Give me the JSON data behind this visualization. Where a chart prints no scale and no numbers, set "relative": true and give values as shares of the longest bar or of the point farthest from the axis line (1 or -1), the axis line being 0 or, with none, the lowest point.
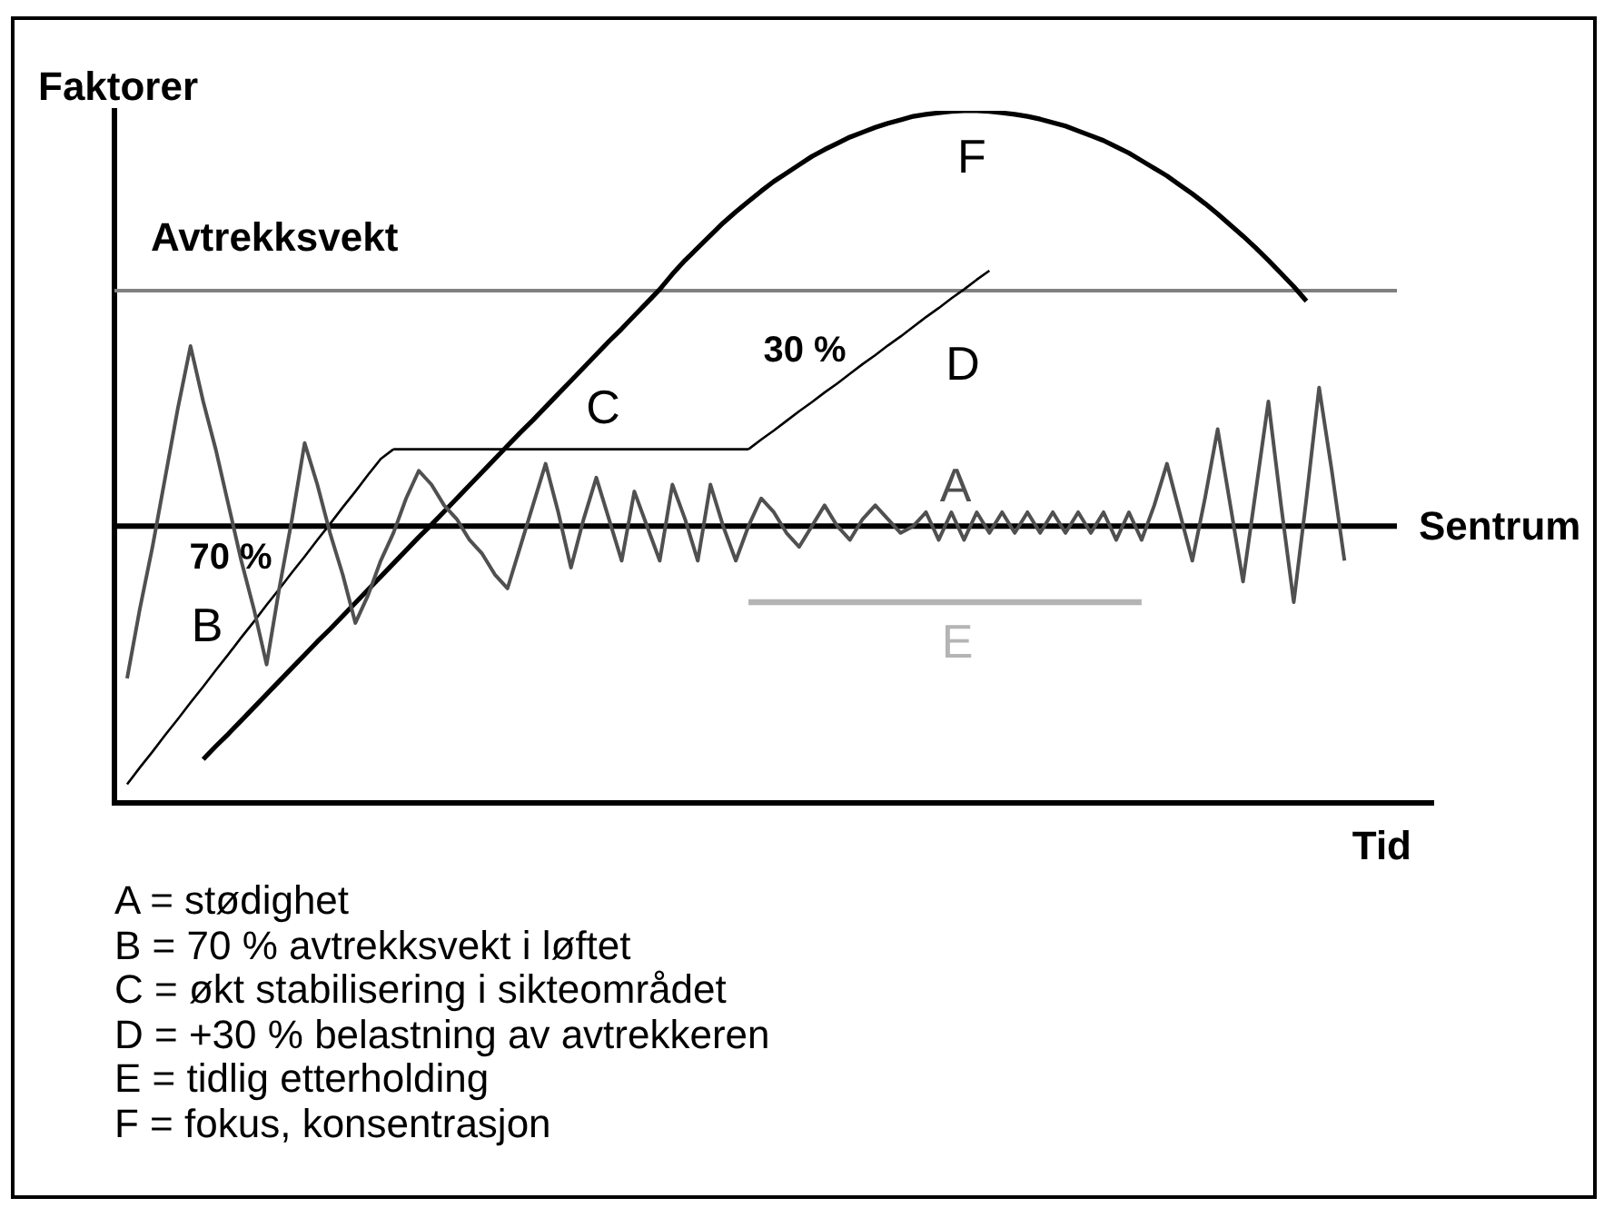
{
  "chart_data": {
    "type": "line",
    "relative": true,
    "marker": "none",
    "ylabel": "Faktorer",
    "xlabel": "Tid",
    "categories": [
      null,
      null,
      null,
      null,
      null,
      null,
      null,
      null,
      null,
      null,
      null,
      null,
      null,
      null,
      null,
      null,
      null,
      null,
      null,
      null,
      null,
      null,
      null,
      null,
      null,
      null,
      null,
      null,
      null,
      null,
      null,
      null,
      null,
      null,
      null,
      null,
      null,
      null,
      null,
      null,
      null,
      null,
      null,
      null,
      null,
      null,
      null,
      null,
      null,
      null,
      null,
      null,
      null,
      null,
      null,
      null,
      null,
      null,
      null,
      null,
      null,
      null,
      null,
      null,
      null,
      null,
      null,
      null,
      null,
      null,
      null,
      null,
      null,
      null,
      null,
      null,
      null,
      null,
      null,
      null,
      null,
      null,
      null,
      null,
      null,
      null,
      null,
      null,
      null,
      null,
      null,
      null,
      null,
      null,
      null,
      null,
      null,
      null,
      null,
      null,
      null,
      null,
      null,
      null,
      null
    ],
    "series": [
      {
        "name": "A",
        "color": "#505050",
        "values": [
          null,
          0.18,
          0.28,
          0.37,
          0.47,
          0.57,
          0.66,
          0.58,
          0.51,
          0.43,
          0.35,
          0.28,
          0.2,
          0.31,
          0.41,
          0.52,
          0.46,
          0.39,
          0.33,
          0.26,
          0.3,
          0.35,
          0.39,
          0.44,
          0.48,
          0.46,
          0.43,
          0.41,
          0.38,
          0.36,
          0.33,
          0.31,
          0.37,
          0.43,
          0.49,
          0.42,
          0.34,
          0.41,
          0.47,
          0.41,
          0.35,
          0.45,
          0.4,
          0.35,
          0.46,
          0.41,
          0.35,
          0.46,
          0.4,
          0.35,
          0.4,
          0.44,
          0.42,
          0.39,
          0.37,
          0.4,
          0.43,
          0.4,
          0.38,
          0.41,
          0.43,
          0.41,
          0.39,
          0.4,
          0.42,
          0.38,
          0.42,
          0.38,
          0.42,
          0.39,
          0.42,
          0.39,
          0.42,
          0.39,
          0.42,
          0.39,
          0.42,
          0.39,
          0.42,
          0.38,
          0.42,
          0.38,
          0.43,
          0.49,
          0.42,
          0.35,
          0.44,
          0.54,
          0.43,
          0.32,
          0.45,
          0.58,
          0.43,
          0.29,
          0.44,
          0.6,
          0.48,
          0.35,
          null,
          null,
          null,
          null,
          null,
          null,
          null
        ]
      },
      {
        "name": "B",
        "color": "#000000",
        "values": [
          null,
          0.027,
          0.051,
          0.074,
          0.098,
          0.121,
          0.145,
          0.168,
          0.192,
          0.215,
          0.239,
          0.262,
          0.286,
          0.309,
          0.333,
          0.356,
          0.38,
          0.403,
          0.427,
          0.45,
          0.474,
          0.497,
          0.511,
          null,
          null,
          null,
          null,
          null,
          null,
          null,
          null,
          null,
          null,
          null,
          null,
          null,
          null,
          null,
          null,
          null,
          null,
          null,
          null,
          null,
          null,
          null,
          null,
          null,
          null,
          null,
          null,
          null,
          null,
          null,
          null,
          null,
          null,
          null,
          null,
          null,
          null,
          null,
          null,
          null,
          null,
          null,
          null,
          null,
          null,
          null,
          null,
          null,
          null,
          null,
          null,
          null,
          null,
          null,
          null,
          null,
          null,
          null,
          null,
          null,
          null,
          null,
          null,
          null,
          null,
          null,
          null,
          null,
          null,
          null,
          null,
          null,
          null,
          null,
          null,
          null,
          null,
          null,
          null,
          null,
          null
        ]
      },
      {
        "name": "C",
        "color": "#000000",
        "values": [
          null,
          null,
          null,
          null,
          null,
          null,
          null,
          null,
          null,
          null,
          null,
          null,
          null,
          null,
          null,
          null,
          null,
          null,
          null,
          null,
          null,
          null,
          0.511,
          0.511,
          0.511,
          0.511,
          0.511,
          0.511,
          0.511,
          0.511,
          0.511,
          0.511,
          0.511,
          0.511,
          0.511,
          0.511,
          0.511,
          0.511,
          0.511,
          0.511,
          0.511,
          0.511,
          0.511,
          0.511,
          0.511,
          0.511,
          0.511,
          0.511,
          0.511,
          0.511,
          0.511,
          null,
          null,
          null,
          null,
          null,
          null,
          null,
          null,
          null,
          null,
          null,
          null,
          null,
          null,
          null,
          null,
          null,
          null,
          null,
          null,
          null,
          null,
          null,
          null,
          null,
          null,
          null,
          null,
          null,
          null,
          null,
          null,
          null,
          null,
          null,
          null,
          null,
          null,
          null,
          null,
          null,
          null,
          null,
          null,
          null,
          null,
          null,
          null,
          null,
          null,
          null,
          null,
          null,
          null
        ]
      },
      {
        "name": "D",
        "color": "#000000",
        "values": [
          null,
          null,
          null,
          null,
          null,
          null,
          null,
          null,
          null,
          null,
          null,
          null,
          null,
          null,
          null,
          null,
          null,
          null,
          null,
          null,
          null,
          null,
          null,
          null,
          null,
          null,
          null,
          null,
          null,
          null,
          null,
          null,
          null,
          null,
          null,
          null,
          null,
          null,
          null,
          null,
          null,
          null,
          null,
          null,
          null,
          null,
          null,
          null,
          null,
          null,
          0.511,
          0.525,
          0.538,
          0.552,
          0.566,
          0.579,
          0.593,
          0.606,
          0.62,
          0.634,
          0.647,
          0.661,
          0.674,
          0.688,
          0.702,
          0.715,
          0.729,
          0.742,
          0.756,
          0.769,
          null,
          null,
          null,
          null,
          null,
          null,
          null,
          null,
          null,
          null,
          null,
          null,
          null,
          null,
          null,
          null,
          null,
          null,
          null,
          null,
          null,
          null,
          null,
          null,
          null,
          null,
          null,
          null,
          null,
          null,
          null,
          null,
          null,
          null,
          null
        ]
      },
      {
        "name": "E",
        "color": "#b4b4b4",
        "values": [
          null,
          null,
          null,
          null,
          null,
          null,
          null,
          null,
          null,
          null,
          null,
          null,
          null,
          null,
          null,
          null,
          null,
          null,
          null,
          null,
          null,
          null,
          null,
          null,
          null,
          null,
          null,
          null,
          null,
          null,
          null,
          null,
          null,
          null,
          null,
          null,
          null,
          null,
          null,
          null,
          null,
          null,
          null,
          null,
          null,
          null,
          null,
          null,
          null,
          null,
          0.29,
          0.29,
          0.29,
          0.29,
          0.29,
          0.29,
          0.29,
          0.29,
          0.29,
          0.29,
          0.29,
          0.29,
          0.29,
          0.29,
          0.29,
          0.29,
          0.29,
          0.29,
          0.29,
          0.29,
          0.29,
          0.29,
          0.29,
          0.29,
          0.29,
          0.29,
          0.29,
          0.29,
          0.29,
          0.29,
          0.29,
          0.29,
          null,
          null,
          null,
          null,
          null,
          null,
          null,
          null,
          null,
          null,
          null,
          null,
          null,
          null,
          null,
          null,
          null,
          null,
          null,
          null,
          null,
          null,
          null
        ]
      },
      {
        "name": "F",
        "color": "#000000",
        "values": [
          null,
          null,
          null,
          null,
          null,
          null,
          null,
          0.063,
          0.082,
          0.1,
          0.119,
          0.138,
          0.157,
          0.176,
          0.195,
          0.214,
          0.233,
          0.251,
          0.27,
          0.289,
          0.308,
          0.327,
          0.346,
          0.365,
          0.384,
          0.402,
          0.421,
          0.44,
          0.459,
          0.478,
          0.497,
          0.516,
          0.535,
          0.553,
          0.572,
          0.591,
          0.61,
          0.629,
          0.648,
          0.667,
          0.685,
          0.704,
          0.723,
          0.742,
          0.764,
          0.784,
          0.802,
          0.82,
          0.838,
          0.854,
          0.869,
          0.884,
          0.898,
          0.91,
          0.922,
          0.934,
          0.944,
          0.953,
          0.962,
          0.969,
          0.976,
          0.982,
          0.987,
          0.992,
          0.995,
          0.997,
          0.999,
          1,
          1,
          0.999,
          0.997,
          0.995,
          0.992,
          0.988,
          0.983,
          0.978,
          0.971,
          0.964,
          0.957,
          0.948,
          0.939,
          0.928,
          0.917,
          0.906,
          0.893,
          0.88,
          0.866,
          0.851,
          0.835,
          0.819,
          0.802,
          0.784,
          0.765,
          0.746,
          0.725,
          null,
          null,
          null,
          null,
          null,
          null,
          null,
          null,
          null,
          null
        ]
      }
    ],
    "ref_lines": [
      {
        "axis": "y",
        "value": 0.74,
        "label": "Avtrekksvekt",
        "color": "#808080"
      },
      {
        "axis": "y",
        "value": 0.4,
        "label": "Sentrum",
        "color": "#000000"
      }
    ],
    "annotations": [
      "70 %",
      "30 %",
      "A = stødighet",
      "B = 70 % avtrekksvekt i løftet",
      "C = økt stabilisering i sikteområdet",
      "D = +30 % belastning av avtrekkeren",
      "E = tidlig etterholding",
      "F = fokus, konsentrasjon"
    ]
  }
}
